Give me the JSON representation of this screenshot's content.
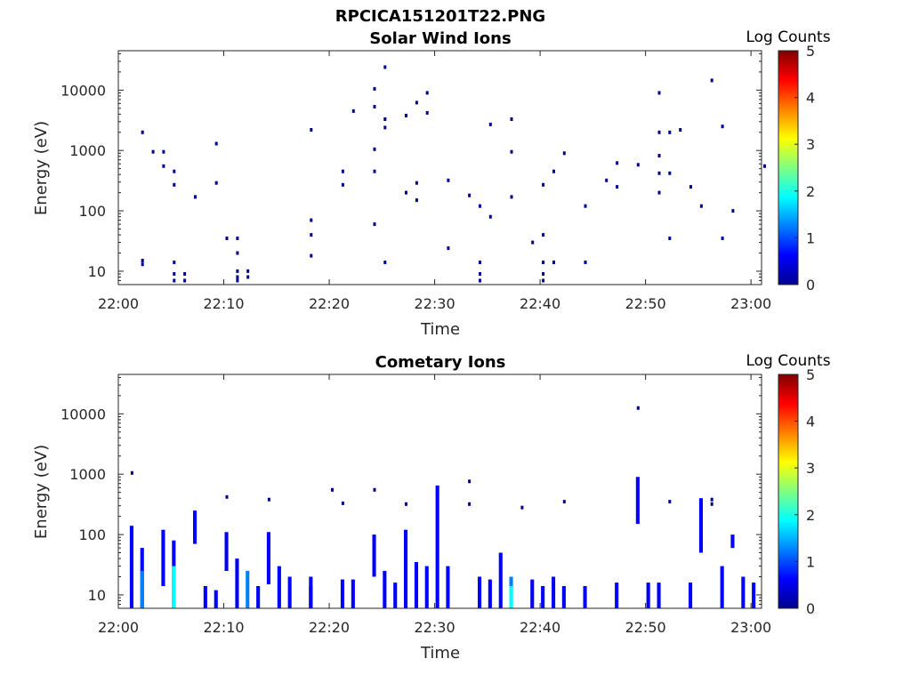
{
  "figure_title": "RPCICA151201T22.PNG",
  "colors": {
    "colormap": [
      "#00008f",
      "#0000ff",
      "#0080ff",
      "#00ffff",
      "#80ff80",
      "#ffff00",
      "#ff8000",
      "#ff0000",
      "#800000"
    ],
    "axis": "#262626"
  },
  "chart_data": [
    {
      "type": "heatmap",
      "title": "Solar Wind Ions",
      "xlabel": "Time",
      "ylabel": "Energy (eV)",
      "y_scale": "log",
      "xlim": [
        "22:00",
        "23:01"
      ],
      "ylim": [
        6,
        45000
      ],
      "x_ticks": [
        "22:00",
        "22:10",
        "22:20",
        "22:30",
        "22:40",
        "22:50",
        "23:00"
      ],
      "y_ticks": [
        "10",
        "100",
        "1000",
        "10000"
      ],
      "colorbar": {
        "label": "Log Counts",
        "range": [
          0,
          5
        ],
        "ticks": [
          "0",
          "1",
          "2",
          "3",
          "4",
          "5"
        ]
      },
      "grid": false,
      "points": [
        {
          "t": "22:02",
          "e": 2000,
          "v": 0.2
        },
        {
          "t": "22:03",
          "e": 950,
          "v": 0.2
        },
        {
          "t": "22:04",
          "e": 950,
          "v": 0.2
        },
        {
          "t": "22:04",
          "e": 550,
          "v": 0.2
        },
        {
          "t": "22:05",
          "e": 450,
          "v": 0.2
        },
        {
          "t": "22:05",
          "e": 270,
          "v": 0.2
        },
        {
          "t": "22:07",
          "e": 170,
          "v": 0.2
        },
        {
          "t": "22:09",
          "e": 1300,
          "v": 0.2
        },
        {
          "t": "22:09",
          "e": 290,
          "v": 0.2
        },
        {
          "t": "22:10",
          "e": 35,
          "v": 0.2
        },
        {
          "t": "22:11",
          "e": 35,
          "v": 0.2
        },
        {
          "t": "22:11",
          "e": 20,
          "v": 0.2
        },
        {
          "t": "22:02",
          "e": 15,
          "v": 0.3
        },
        {
          "t": "22:02",
          "e": 13,
          "v": 0.3
        },
        {
          "t": "22:05",
          "e": 14,
          "v": 0.2
        },
        {
          "t": "22:05",
          "e": 9,
          "v": 0.2
        },
        {
          "t": "22:05",
          "e": 7,
          "v": 0.2
        },
        {
          "t": "22:06",
          "e": 9,
          "v": 0.2
        },
        {
          "t": "22:06",
          "e": 7,
          "v": 0.2
        },
        {
          "t": "22:11",
          "e": 10,
          "v": 0.3
        },
        {
          "t": "22:11",
          "e": 8,
          "v": 0.3
        },
        {
          "t": "22:11",
          "e": 7,
          "v": 0.3
        },
        {
          "t": "22:12",
          "e": 10,
          "v": 0.3
        },
        {
          "t": "22:12",
          "e": 8,
          "v": 0.3
        },
        {
          "t": "22:18",
          "e": 2200,
          "v": 0.2
        },
        {
          "t": "22:18",
          "e": 18,
          "v": 0.2
        },
        {
          "t": "22:18",
          "e": 70,
          "v": 0.2
        },
        {
          "t": "22:18",
          "e": 40,
          "v": 0.2
        },
        {
          "t": "22:21",
          "e": 270,
          "v": 0.2
        },
        {
          "t": "22:21",
          "e": 450,
          "v": 0.2
        },
        {
          "t": "22:22",
          "e": 4500,
          "v": 0.2
        },
        {
          "t": "22:24",
          "e": 10500,
          "v": 0.2
        },
        {
          "t": "22:24",
          "e": 60,
          "v": 0.2
        },
        {
          "t": "22:24",
          "e": 450,
          "v": 0.2
        },
        {
          "t": "22:24",
          "e": 1050,
          "v": 0.2
        },
        {
          "t": "22:24",
          "e": 5300,
          "v": 0.2
        },
        {
          "t": "22:25",
          "e": 3300,
          "v": 0.2
        },
        {
          "t": "22:25",
          "e": 2400,
          "v": 0.2
        },
        {
          "t": "22:25",
          "e": 24000,
          "v": 0.2
        },
        {
          "t": "22:25",
          "e": 14,
          "v": 0.2
        },
        {
          "t": "22:27",
          "e": 3800,
          "v": 0.2
        },
        {
          "t": "22:27",
          "e": 200,
          "v": 0.2
        },
        {
          "t": "22:28",
          "e": 150,
          "v": 0.2
        },
        {
          "t": "22:28",
          "e": 6200,
          "v": 0.2
        },
        {
          "t": "22:28",
          "e": 290,
          "v": 0.2
        },
        {
          "t": "22:29",
          "e": 9000,
          "v": 0.2
        },
        {
          "t": "22:29",
          "e": 4200,
          "v": 0.2
        },
        {
          "t": "22:31",
          "e": 320,
          "v": 0.2
        },
        {
          "t": "22:31",
          "e": 24,
          "v": 0.2
        },
        {
          "t": "22:33",
          "e": 180,
          "v": 0.2
        },
        {
          "t": "22:34",
          "e": 120,
          "v": 0.2
        },
        {
          "t": "22:34",
          "e": 14,
          "v": 0.2
        },
        {
          "t": "22:34",
          "e": 9,
          "v": 0.2
        },
        {
          "t": "22:34",
          "e": 7,
          "v": 0.2
        },
        {
          "t": "22:35",
          "e": 2700,
          "v": 0.2
        },
        {
          "t": "22:35",
          "e": 80,
          "v": 0.2
        },
        {
          "t": "22:37",
          "e": 3300,
          "v": 0.2
        },
        {
          "t": "22:37",
          "e": 950,
          "v": 0.2
        },
        {
          "t": "22:37",
          "e": 170,
          "v": 0.2
        },
        {
          "t": "22:39",
          "e": 30,
          "v": 0.2
        },
        {
          "t": "22:40",
          "e": 40,
          "v": 0.2
        },
        {
          "t": "22:40",
          "e": 270,
          "v": 0.2
        },
        {
          "t": "22:40",
          "e": 14,
          "v": 0.2
        },
        {
          "t": "22:40",
          "e": 9,
          "v": 0.2
        },
        {
          "t": "22:40",
          "e": 7,
          "v": 0.2
        },
        {
          "t": "22:41",
          "e": 450,
          "v": 0.2
        },
        {
          "t": "22:41",
          "e": 14,
          "v": 0.2
        },
        {
          "t": "22:42",
          "e": 900,
          "v": 0.2
        },
        {
          "t": "22:44",
          "e": 120,
          "v": 0.2
        },
        {
          "t": "22:44",
          "e": 14,
          "v": 0.2
        },
        {
          "t": "22:46",
          "e": 320,
          "v": 0.2
        },
        {
          "t": "22:47",
          "e": 620,
          "v": 0.2
        },
        {
          "t": "22:47",
          "e": 250,
          "v": 0.2
        },
        {
          "t": "22:49",
          "e": 580,
          "v": 0.2
        },
        {
          "t": "22:51",
          "e": 9000,
          "v": 0.2
        },
        {
          "t": "22:51",
          "e": 2000,
          "v": 0.2
        },
        {
          "t": "22:51",
          "e": 420,
          "v": 0.2
        },
        {
          "t": "22:51",
          "e": 200,
          "v": 0.2
        },
        {
          "t": "22:51",
          "e": 820,
          "v": 0.2
        },
        {
          "t": "22:52",
          "e": 2000,
          "v": 0.2
        },
        {
          "t": "22:52",
          "e": 420,
          "v": 0.2
        },
        {
          "t": "22:52",
          "e": 35,
          "v": 0.2
        },
        {
          "t": "22:53",
          "e": 2200,
          "v": 0.2
        },
        {
          "t": "22:54",
          "e": 250,
          "v": 0.2
        },
        {
          "t": "22:55",
          "e": 120,
          "v": 0.2
        },
        {
          "t": "22:56",
          "e": 14500,
          "v": 0.2
        },
        {
          "t": "22:57",
          "e": 35,
          "v": 0.2
        },
        {
          "t": "22:57",
          "e": 2500,
          "v": 0.2
        },
        {
          "t": "22:58",
          "e": 100,
          "v": 0.2
        },
        {
          "t": "23:01",
          "e": 550,
          "v": 0.2
        }
      ]
    },
    {
      "type": "heatmap",
      "title": "Cometary Ions",
      "xlabel": "Time",
      "ylabel": "Energy (eV)",
      "y_scale": "log",
      "xlim": [
        "22:00",
        "23:01"
      ],
      "ylim": [
        6,
        45000
      ],
      "x_ticks": [
        "22:00",
        "22:10",
        "22:20",
        "22:30",
        "22:40",
        "22:50",
        "23:00"
      ],
      "y_ticks": [
        "10",
        "100",
        "1000",
        "10000"
      ],
      "colorbar": {
        "label": "Log Counts",
        "range": [
          0,
          5
        ],
        "ticks": [
          "0",
          "1",
          "2",
          "3",
          "4",
          "5"
        ]
      },
      "grid": false,
      "columns": [
        {
          "t": "22:01",
          "e_min": 6,
          "e_max": 140,
          "v": 0.6
        },
        {
          "t": "22:02",
          "e_min": 6,
          "e_max": 60,
          "v": 0.9
        },
        {
          "t": "22:02",
          "e_min": 6,
          "e_max": 25,
          "v": 1.4
        },
        {
          "t": "22:04",
          "e_min": 14,
          "e_max": 120,
          "v": 0.5
        },
        {
          "t": "22:05",
          "e_min": 6,
          "e_max": 80,
          "v": 0.8
        },
        {
          "t": "22:05",
          "e_min": 6,
          "e_max": 30,
          "v": 1.6
        },
        {
          "t": "22:07",
          "e_min": 70,
          "e_max": 250,
          "v": 0.4
        },
        {
          "t": "22:08",
          "e_min": 6,
          "e_max": 14,
          "v": 0.6
        },
        {
          "t": "22:09",
          "e_min": 6,
          "e_max": 12,
          "v": 0.7
        },
        {
          "t": "22:10",
          "e_min": 25,
          "e_max": 110,
          "v": 0.5
        },
        {
          "t": "22:11",
          "e_min": 6,
          "e_max": 40,
          "v": 0.9
        },
        {
          "t": "22:12",
          "e_min": 6,
          "e_max": 25,
          "v": 1.3
        },
        {
          "t": "22:13",
          "e_min": 6,
          "e_max": 14,
          "v": 0.7
        },
        {
          "t": "22:14",
          "e_min": 15,
          "e_max": 110,
          "v": 0.5
        },
        {
          "t": "22:15",
          "e_min": 6,
          "e_max": 30,
          "v": 0.9
        },
        {
          "t": "22:16",
          "e_min": 6,
          "e_max": 20,
          "v": 0.8
        },
        {
          "t": "22:18",
          "e_min": 6,
          "e_max": 14,
          "v": 0.6
        },
        {
          "t": "22:18",
          "e_min": 6,
          "e_max": 20,
          "v": 0.9
        },
        {
          "t": "22:21",
          "e_min": 6,
          "e_max": 18,
          "v": 0.7
        },
        {
          "t": "22:22",
          "e_min": 6,
          "e_max": 18,
          "v": 0.8
        },
        {
          "t": "22:24",
          "e_min": 20,
          "e_max": 100,
          "v": 0.5
        },
        {
          "t": "22:25",
          "e_min": 6,
          "e_max": 25,
          "v": 0.8
        },
        {
          "t": "22:26",
          "e_min": 6,
          "e_max": 16,
          "v": 0.9
        },
        {
          "t": "22:27",
          "e_min": 6,
          "e_max": 120,
          "v": 0.7
        },
        {
          "t": "22:28",
          "e_min": 6,
          "e_max": 35,
          "v": 0.9
        },
        {
          "t": "22:29",
          "e_min": 6,
          "e_max": 30,
          "v": 0.8
        },
        {
          "t": "22:30",
          "e_min": 6,
          "e_max": 650,
          "v": 0.5
        },
        {
          "t": "22:31",
          "e_min": 6,
          "e_max": 30,
          "v": 0.6
        },
        {
          "t": "22:34",
          "e_min": 6,
          "e_max": 20,
          "v": 0.7
        },
        {
          "t": "22:35",
          "e_min": 6,
          "e_max": 18,
          "v": 0.6
        },
        {
          "t": "22:36",
          "e_min": 6,
          "e_max": 50,
          "v": 0.8
        },
        {
          "t": "22:37",
          "e_min": 6,
          "e_max": 20,
          "v": 1.2
        },
        {
          "t": "22:37",
          "e_min": 6,
          "e_max": 14,
          "v": 1.7
        },
        {
          "t": "22:39",
          "e_min": 6,
          "e_max": 18,
          "v": 0.6
        },
        {
          "t": "22:40",
          "e_min": 6,
          "e_max": 14,
          "v": 0.9
        },
        {
          "t": "22:41",
          "e_min": 6,
          "e_max": 20,
          "v": 0.7
        },
        {
          "t": "22:42",
          "e_min": 6,
          "e_max": 14,
          "v": 0.6
        },
        {
          "t": "22:44",
          "e_min": 6,
          "e_max": 14,
          "v": 0.6
        },
        {
          "t": "22:47",
          "e_min": 6,
          "e_max": 16,
          "v": 0.7
        },
        {
          "t": "22:49",
          "e_min": 150,
          "e_max": 900,
          "v": 0.4
        },
        {
          "t": "22:50",
          "e_min": 6,
          "e_max": 16,
          "v": 0.7
        },
        {
          "t": "22:51",
          "e_min": 6,
          "e_max": 16,
          "v": 0.7
        },
        {
          "t": "22:54",
          "e_min": 6,
          "e_max": 16,
          "v": 0.7
        },
        {
          "t": "22:55",
          "e_min": 50,
          "e_max": 400,
          "v": 0.4
        },
        {
          "t": "22:57",
          "e_min": 6,
          "e_max": 30,
          "v": 0.7
        },
        {
          "t": "22:58",
          "e_min": 60,
          "e_max": 100,
          "v": 0.4
        },
        {
          "t": "22:59",
          "e_min": 6,
          "e_max": 20,
          "v": 0.6
        },
        {
          "t": "23:00",
          "e_min": 6,
          "e_max": 16,
          "v": 0.6
        }
      ],
      "points": [
        {
          "t": "22:01",
          "e": 1050,
          "v": 0.2
        },
        {
          "t": "22:10",
          "e": 420,
          "v": 0.2
        },
        {
          "t": "22:14",
          "e": 380,
          "v": 0.2
        },
        {
          "t": "22:20",
          "e": 550,
          "v": 0.2
        },
        {
          "t": "22:21",
          "e": 330,
          "v": 0.2
        },
        {
          "t": "22:24",
          "e": 550,
          "v": 0.2
        },
        {
          "t": "22:27",
          "e": 320,
          "v": 0.2
        },
        {
          "t": "22:33",
          "e": 760,
          "v": 0.2
        },
        {
          "t": "22:33",
          "e": 320,
          "v": 0.2
        },
        {
          "t": "22:38",
          "e": 280,
          "v": 0.2
        },
        {
          "t": "22:42",
          "e": 350,
          "v": 0.2
        },
        {
          "t": "22:49",
          "e": 12500,
          "v": 0.2
        },
        {
          "t": "22:52",
          "e": 350,
          "v": 0.2
        },
        {
          "t": "22:56",
          "e": 380,
          "v": 0.2
        },
        {
          "t": "22:56",
          "e": 320,
          "v": 0.2
        }
      ]
    }
  ]
}
